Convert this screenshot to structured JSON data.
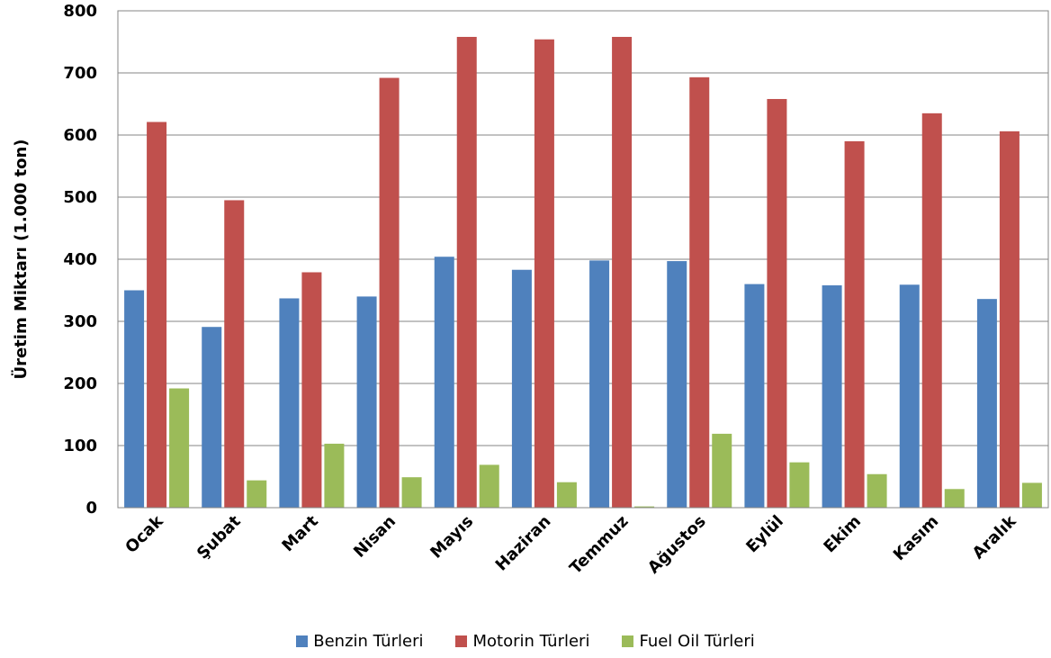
{
  "chart_data": {
    "type": "bar",
    "title": "",
    "xlabel": "",
    "ylabel": "Üretim Miktarı (1.000 ton)",
    "ylim": [
      0,
      800
    ],
    "yticks": [
      "0",
      "100",
      "200",
      "300",
      "400",
      "500",
      "600",
      "700",
      "800"
    ],
    "grid": true,
    "legend_position": "bottom",
    "categories": [
      "Ocak",
      "Şubat",
      "Mart",
      "Nisan",
      "Mayıs",
      "Haziran",
      "Temmuz",
      "Ağustos",
      "Eylül",
      "Ekim",
      "Kasım",
      "Aralık"
    ],
    "series": [
      {
        "name": "Benzin Türleri",
        "color": "#4F81BD",
        "values": [
          350,
          291,
          337,
          340,
          404,
          383,
          398,
          397,
          360,
          358,
          359,
          336
        ]
      },
      {
        "name": "Motorin Türleri",
        "color": "#C0504D",
        "values": [
          621,
          495,
          379,
          692,
          758,
          754,
          758,
          693,
          658,
          590,
          635,
          606
        ]
      },
      {
        "name": "Fuel Oil Türleri",
        "color": "#9BBB59",
        "values": [
          192,
          44,
          103,
          49,
          69,
          41,
          2,
          119,
          73,
          54,
          30,
          40
        ]
      }
    ]
  }
}
